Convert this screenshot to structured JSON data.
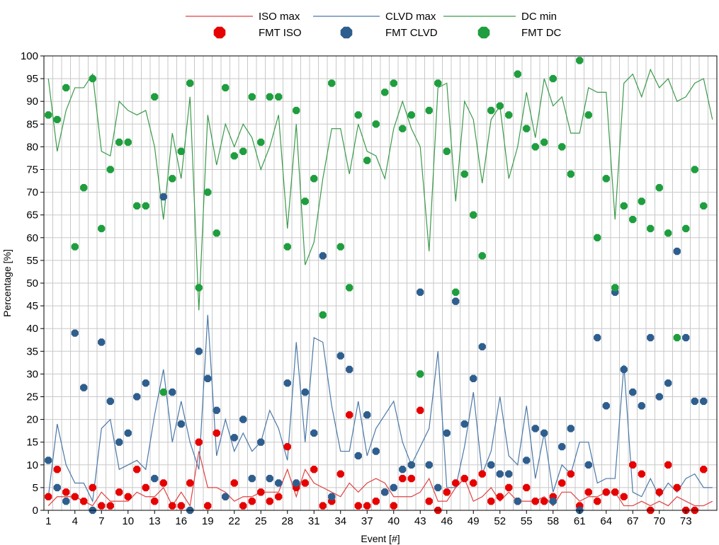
{
  "chart_data": {
    "type": "scatter",
    "xlabel": "Event [#]",
    "ylabel": "Percentage [%]",
    "xlim": [
      1,
      75
    ],
    "ylim": [
      0,
      100
    ],
    "x_ticks": [
      1,
      4,
      7,
      10,
      13,
      16,
      19,
      22,
      25,
      28,
      31,
      34,
      37,
      40,
      43,
      46,
      49,
      52,
      55,
      58,
      61,
      64,
      67,
      70,
      73
    ],
    "y_ticks": [
      0,
      5,
      10,
      15,
      20,
      25,
      30,
      35,
      40,
      45,
      50,
      55,
      60,
      65,
      70,
      75,
      80,
      85,
      90,
      95,
      100
    ],
    "grid": true,
    "legend_position": "top",
    "colors": {
      "iso": "#e60000",
      "clvd": "#2e5e8e",
      "dc": "#1e9e3e",
      "iso_line": "#e04040",
      "clvd_line": "#4a78a8",
      "dc_line": "#3a9a4a"
    },
    "series": [
      {
        "name": "ISO max",
        "kind": "line",
        "values": [
          1,
          3,
          3,
          3,
          2,
          1,
          4,
          2,
          2,
          2,
          4,
          3,
          3,
          5,
          1,
          4,
          1,
          13,
          5,
          5,
          4,
          2,
          3,
          3,
          4,
          4,
          4,
          9,
          3,
          9,
          6,
          5,
          4,
          3,
          6,
          4,
          6,
          7,
          6,
          3,
          3,
          3,
          4,
          7,
          2,
          2,
          5,
          7,
          2,
          3,
          5,
          2,
          4,
          2,
          2,
          2,
          3,
          1,
          4,
          4,
          2,
          3,
          3,
          4,
          4,
          1,
          1,
          2,
          1,
          2,
          1,
          3,
          2,
          1,
          1,
          2
        ]
      },
      {
        "name": "CLVD max",
        "kind": "line",
        "values": [
          3,
          19,
          10,
          6,
          6,
          2,
          18,
          20,
          9,
          10,
          11,
          9,
          21,
          31,
          15,
          24,
          15,
          9,
          43,
          12,
          20,
          13,
          17,
          13,
          15,
          22,
          18,
          11,
          37,
          15,
          38,
          37,
          23,
          13,
          13,
          24,
          12,
          18,
          21,
          24,
          15,
          10,
          14,
          18,
          35,
          5,
          5,
          14,
          26,
          8,
          13,
          25,
          12,
          10,
          23,
          7,
          17,
          4,
          10,
          8,
          15,
          15,
          6,
          7,
          7,
          32,
          4,
          3,
          7,
          3,
          6,
          4,
          7,
          8,
          5,
          5
        ]
      },
      {
        "name": "DC min",
        "kind": "line",
        "values": [
          95,
          79,
          88,
          93,
          93,
          96,
          79,
          78,
          90,
          88,
          87,
          88,
          80,
          64,
          83,
          73,
          91,
          44,
          87,
          76,
          85,
          80,
          85,
          82,
          75,
          80,
          87,
          62,
          85,
          54,
          59,
          73,
          84,
          84,
          74,
          85,
          79,
          78,
          73,
          84,
          90,
          84,
          80,
          57,
          93,
          94,
          68,
          90,
          86,
          72,
          86,
          89,
          73,
          80,
          92,
          82,
          95,
          89,
          91,
          83,
          83,
          93,
          92,
          92,
          64,
          94,
          96,
          91,
          97,
          93,
          95,
          90,
          91,
          94,
          95,
          86
        ]
      },
      {
        "name": "FMT ISO",
        "kind": "points",
        "values": [
          3,
          9,
          4,
          3,
          2,
          5,
          1,
          1,
          4,
          3,
          9,
          5,
          2,
          6,
          1,
          1,
          6,
          15,
          1,
          17,
          3,
          6,
          1,
          2,
          4,
          2,
          3,
          14,
          5,
          6,
          9,
          1,
          2,
          8,
          21,
          1,
          1,
          2,
          4,
          1,
          7,
          7,
          22,
          2,
          0,
          4,
          6,
          7,
          6,
          8,
          2,
          3,
          5,
          2,
          5,
          2,
          2,
          3,
          6,
          8,
          1,
          4,
          2,
          4,
          4,
          3,
          10,
          8,
          0,
          4,
          10,
          5,
          0,
          0,
          9
        ]
      },
      {
        "name": "FMT CLVD",
        "kind": "points",
        "values": [
          11,
          5,
          2,
          39,
          27,
          0,
          37,
          24,
          15,
          17,
          25,
          28,
          7,
          69,
          26,
          19,
          0,
          35,
          29,
          22,
          3,
          16,
          20,
          7,
          15,
          7,
          6,
          28,
          6,
          26,
          17,
          56,
          3,
          34,
          31,
          12,
          21,
          13,
          4,
          5,
          9,
          10,
          48,
          10,
          5,
          17,
          46,
          19,
          29,
          36,
          10,
          8,
          8,
          2,
          11,
          18,
          17,
          2,
          14,
          18,
          0,
          10,
          38,
          23,
          48,
          31,
          26,
          23,
          38,
          25,
          28,
          57,
          38,
          24,
          24
        ]
      },
      {
        "name": "FMT DC",
        "kind": "points",
        "values": [
          87,
          86,
          93,
          58,
          71,
          95,
          62,
          75,
          81,
          81,
          67,
          67,
          91,
          26,
          73,
          79,
          94,
          49,
          70,
          61,
          93,
          78,
          79,
          91,
          81,
          91,
          91,
          58,
          88,
          68,
          73,
          43,
          94,
          58,
          49,
          87,
          77,
          85,
          92,
          94,
          84,
          87,
          30,
          88,
          94,
          79,
          48,
          74,
          65,
          56,
          88,
          89,
          87,
          96,
          84,
          80,
          81,
          95,
          80,
          74,
          99,
          87,
          60,
          73,
          49,
          67,
          64,
          68,
          62,
          71,
          61,
          38,
          62,
          75,
          67
        ]
      }
    ]
  }
}
